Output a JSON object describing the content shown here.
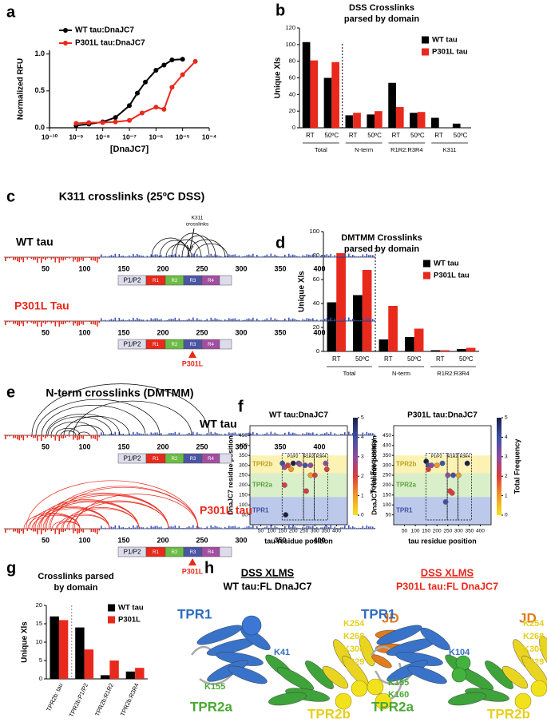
{
  "panel_labels": [
    "a",
    "b",
    "c",
    "d",
    "e",
    "f",
    "g",
    "h"
  ],
  "chart_data": [
    {
      "type": "line",
      "log_x": true,
      "xlabel": "[DnaJC7]",
      "ylabel": "Normalized RFU",
      "xlim": [
        1e-10,
        0.0001
      ],
      "xticks": [
        {
          "value": 1e-10,
          "label": "10⁻¹⁰"
        },
        {
          "value": 1e-09,
          "label": "10⁻⁹"
        },
        {
          "value": 1e-08,
          "label": "10⁻⁸"
        },
        {
          "value": 1e-07,
          "label": "10⁻⁷"
        },
        {
          "value": 1e-06,
          "label": "10⁻⁶"
        },
        {
          "value": 1e-05,
          "label": "10⁻⁵"
        },
        {
          "value": 0.0001,
          "label": "10⁻⁴"
        }
      ],
      "ylim": [
        0,
        1.05
      ],
      "yticks": [
        {
          "value": 0,
          "label": "0.0"
        },
        {
          "value": 0.5,
          "label": "0.5"
        },
        {
          "value": 1,
          "label": "1.0"
        }
      ],
      "legend": "upper left",
      "series": [
        {
          "name": "WT tau:DnaJC7",
          "color": "#000000",
          "x": [
            1e-09,
            3e-09,
            1e-08,
            3e-08,
            1e-07,
            2e-07,
            4e-07,
            1e-06,
            2e-06,
            4e-06,
            1e-05
          ],
          "values": [
            0.03,
            0.05,
            0.08,
            0.14,
            0.3,
            0.47,
            0.62,
            0.78,
            0.85,
            0.92,
            0.93
          ]
        },
        {
          "name": "P301L tau:DnaJC7",
          "color": "#e8291c",
          "x": [
            1e-09,
            3e-09,
            1e-08,
            3e-08,
            1e-07,
            3e-07,
            1e-06,
            2e-06,
            4e-06,
            1e-05,
            3e-05
          ],
          "values": [
            0.06,
            0.07,
            0.07,
            0.08,
            0.1,
            0.2,
            0.28,
            0.25,
            0.55,
            0.72,
            0.9
          ]
        }
      ]
    },
    {
      "type": "bar",
      "title": [
        "DSS Crosslinks",
        "parsed by domain"
      ],
      "ylabel": "Unique Xls",
      "categories": [
        "RT",
        "50ºC",
        "RT",
        "50ºC",
        "RT",
        "50ºC",
        "RT",
        "50ºC"
      ],
      "group_labels": [
        "Total",
        "N-term",
        "R1R2:R3R4",
        "K311"
      ],
      "ylim": [
        0,
        120
      ],
      "yticks": [
        0,
        20,
        40,
        60,
        80,
        100,
        120
      ],
      "legend": "upper right",
      "series": [
        {
          "name": "WT tau",
          "color": "#000000",
          "values": [
            103,
            60,
            15,
            16,
            54,
            18,
            12,
            5
          ]
        },
        {
          "name": "P301L tau",
          "color": "#e8291c",
          "values": [
            81,
            79,
            18,
            20,
            25,
            19,
            0,
            0
          ]
        }
      ]
    },
    {
      "type": "bar",
      "title": [
        "DMTMM Crosslinks",
        "parsed by domain"
      ],
      "ylabel": "Unique Xls",
      "categories": [
        "RT",
        "50ºC",
        "RT",
        "50ºC",
        "RT",
        "50ºC"
      ],
      "group_labels": [
        "Total",
        "N-term",
        "R1R2:R3R4"
      ],
      "ylim": [
        0,
        100
      ],
      "yticks": [
        0,
        20,
        40,
        60,
        80,
        100
      ],
      "legend": "upper right",
      "series": [
        {
          "name": "WT tau",
          "color": "#000000",
          "values": [
            41,
            47,
            10,
            12,
            1,
            2
          ]
        },
        {
          "name": "P301L tau",
          "color": "#e8291c",
          "values": [
            82,
            68,
            38,
            19,
            1,
            3
          ]
        }
      ]
    },
    {
      "type": "bar",
      "title": [
        "Crosslinks parsed",
        "by domain"
      ],
      "ylabel": "Unique Xls",
      "categories": [
        "TPR2b: tau",
        "TPR2b:P1/P2",
        "TPR2b:R1R2",
        "TPR2b:R3R4"
      ],
      "ylim": [
        0,
        20
      ],
      "yticks": [
        0,
        5,
        10,
        15,
        20
      ],
      "legend": "upper right",
      "series": [
        {
          "name": "WT tau",
          "color": "#000000",
          "values": [
            17,
            14,
            1,
            2
          ]
        },
        {
          "name": "P301L",
          "color": "#e8291c",
          "values": [
            16,
            8,
            5,
            3
          ]
        }
      ]
    },
    {
      "type": "scatter",
      "title": "WT tau:DnaJC7",
      "xlabel": "tau residue position",
      "ylabel": "DnaJC7 residue position",
      "xlim": [
        0,
        450
      ],
      "xticks": [
        50,
        100,
        150,
        200,
        250,
        300,
        350,
        400
      ],
      "ylim": [
        0,
        500
      ],
      "yticks": [
        50,
        100,
        150,
        200,
        250,
        300,
        350,
        400,
        450
      ],
      "domain_labels": [
        "TPR2b",
        "TPR2a",
        "TPR1"
      ],
      "region_labels": [
        "P1/P2",
        "R1R2",
        "R3R4"
      ],
      "colorbar_label": "Total Frequency",
      "clim": [
        0,
        5
      ],
      "colorbar_ticks": [
        0,
        1,
        2,
        3,
        4,
        5
      ],
      "colormap": [
        "#f6e21b",
        "#f29a25",
        "#dc3b3b",
        "#8d4b9f",
        "#3c52a3",
        "#1b1e48"
      ],
      "x": [
        150,
        160,
        175,
        190,
        200,
        225,
        230,
        255,
        280,
        280,
        300,
        350,
        355,
        160,
        165,
        260
      ],
      "values": [
        310,
        290,
        300,
        280,
        310,
        310,
        305,
        300,
        300,
        250,
        250,
        310,
        280,
        200,
        50,
        170
      ],
      "frequency": [
        4,
        3,
        2,
        1,
        5,
        4,
        3,
        4,
        3,
        1,
        2,
        3,
        2,
        2,
        5,
        2
      ]
    },
    {
      "type": "scatter",
      "title": "P301L tau:DnaJC7",
      "xlabel": "tau residue position",
      "ylabel": "DnaJC7 residue position",
      "xlim": [
        0,
        450
      ],
      "xticks": [
        50,
        100,
        150,
        200,
        250,
        300,
        350,
        400
      ],
      "ylim": [
        0,
        500
      ],
      "yticks": [
        50,
        100,
        150,
        200,
        250,
        300,
        350,
        400,
        450
      ],
      "domain_labels": [
        "TPR2b",
        "TPR2a",
        "TPR1"
      ],
      "region_labels": [
        "P1/P2",
        "R1R2",
        "R3R4"
      ],
      "colorbar_label": "Total Frequency",
      "clim": [
        0,
        5
      ],
      "colorbar_ticks": [
        0,
        1,
        2,
        3,
        4,
        5
      ],
      "colormap": [
        "#f6e21b",
        "#f29a25",
        "#dc3b3b",
        "#8d4b9f",
        "#3c52a3",
        "#1b1e48"
      ],
      "x": [
        150,
        160,
        175,
        160,
        200,
        225,
        250,
        275,
        260,
        270,
        300,
        340,
        240
      ],
      "values": [
        320,
        300,
        300,
        280,
        300,
        310,
        250,
        250,
        170,
        160,
        250,
        310,
        115
      ],
      "frequency": [
        5,
        4,
        3,
        2,
        1,
        4,
        3,
        4,
        2,
        2,
        1,
        5,
        4
      ]
    }
  ],
  "panel_c": {
    "title": "K311 crosslinks (25ºC DSS)",
    "wt_label": "WT tau",
    "annotation": [
      "K311",
      "crosslinks"
    ],
    "mutant_label": "P301L Tau",
    "mutation": "P301L",
    "ruler": [
      50,
      100,
      150,
      200,
      250,
      300,
      350,
      400
    ],
    "domains": [
      "P1/P2",
      "R1",
      "R2",
      "R3",
      "R4"
    ]
  },
  "panel_e": {
    "title": "N-term crosslinks (DMTMM)",
    "wt_label": "WT tau",
    "mutant_label": "P301L tau",
    "mutation": "P301L",
    "ruler": [
      50,
      100,
      150,
      200,
      250,
      300,
      350,
      400
    ],
    "domains": [
      "P1/P2",
      "R1",
      "R2",
      "R3",
      "R4"
    ]
  },
  "panel_h": {
    "left": {
      "title": "DSS XLMS",
      "subtitle": "WT tau:FL DnaJC7",
      "labels": [
        "TPR1",
        "K41",
        "K155",
        "TPR2a",
        "TPR2b",
        "JD",
        "K254",
        "K268",
        "K306",
        "K329"
      ]
    },
    "right": {
      "title": "DSS XLMS",
      "subtitle": "P301L tau:FL DnaJC7",
      "labels": [
        "TPR1",
        "K104",
        "K155",
        "K160",
        "TPR2a",
        "TPR2b",
        "JD",
        "K254",
        "K268",
        "K306",
        "K329"
      ]
    }
  }
}
